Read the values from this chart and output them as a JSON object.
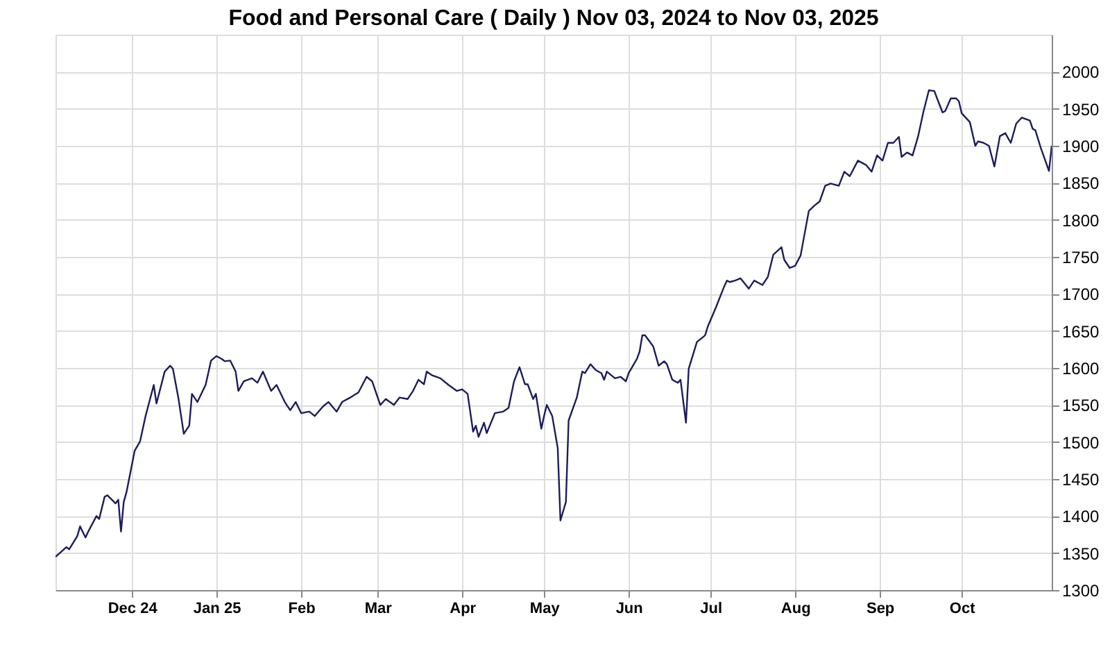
{
  "chart_data": {
    "type": "line",
    "title": "Food and Personal Care ( Daily ) Nov 03, 2024 to Nov 03, 2025",
    "x": [
      "2024-11-03",
      "2024-11-07",
      "2024-11-08",
      "2024-11-11",
      "2024-11-12",
      "2024-11-14",
      "2024-11-15",
      "2024-11-18",
      "2024-11-19",
      "2024-11-21",
      "2024-11-22",
      "2024-11-25",
      "2024-11-26",
      "2024-11-27",
      "2024-11-28",
      "2024-11-29",
      "2024-12-02",
      "2024-12-04",
      "2024-12-06",
      "2024-12-09",
      "2024-12-10",
      "2024-12-13",
      "2024-12-15",
      "2024-12-16",
      "2024-12-18",
      "2024-12-20",
      "2024-12-22",
      "2024-12-23",
      "2024-12-25",
      "2024-12-28",
      "2024-12-30",
      "2025-01-01",
      "2025-01-03",
      "2025-01-04",
      "2025-01-06",
      "2025-01-08",
      "2025-01-09",
      "2025-01-11",
      "2025-01-14",
      "2025-01-16",
      "2025-01-18",
      "2025-01-21",
      "2025-01-23",
      "2025-01-26",
      "2025-01-28",
      "2025-01-30",
      "2025-02-01",
      "2025-02-04",
      "2025-02-06",
      "2025-02-09",
      "2025-02-11",
      "2025-02-14",
      "2025-02-16",
      "2025-02-19",
      "2025-02-22",
      "2025-02-25",
      "2025-02-27",
      "2025-03-02",
      "2025-03-04",
      "2025-03-07",
      "2025-03-09",
      "2025-03-12",
      "2025-03-14",
      "2025-03-16",
      "2025-03-18",
      "2025-03-19",
      "2025-03-21",
      "2025-03-24",
      "2025-03-27",
      "2025-03-30",
      "2025-04-01",
      "2025-04-03",
      "2025-04-05",
      "2025-04-06",
      "2025-04-07",
      "2025-04-09",
      "2025-04-10",
      "2025-04-13",
      "2025-04-16",
      "2025-04-18",
      "2025-04-20",
      "2025-04-22",
      "2025-04-24",
      "2025-04-25",
      "2025-04-27",
      "2025-04-28",
      "2025-04-30",
      "2025-05-01",
      "2025-05-02",
      "2025-05-04",
      "2025-05-06",
      "2025-05-07",
      "2025-05-09",
      "2025-05-10",
      "2025-05-13",
      "2025-05-15",
      "2025-05-16",
      "2025-05-18",
      "2025-05-20",
      "2025-05-22",
      "2025-05-23",
      "2025-05-24",
      "2025-05-27",
      "2025-05-29",
      "2025-05-31",
      "2025-06-01",
      "2025-06-04",
      "2025-06-05",
      "2025-06-06",
      "2025-06-07",
      "2025-06-10",
      "2025-06-12",
      "2025-06-14",
      "2025-06-15",
      "2025-06-17",
      "2025-06-19",
      "2025-06-20",
      "2025-06-22",
      "2025-06-23",
      "2025-06-26",
      "2025-06-29",
      "2025-06-30",
      "2025-07-03",
      "2025-07-06",
      "2025-07-07",
      "2025-07-08",
      "2025-07-10",
      "2025-07-12",
      "2025-07-15",
      "2025-07-17",
      "2025-07-20",
      "2025-07-22",
      "2025-07-24",
      "2025-07-27",
      "2025-07-28",
      "2025-07-30",
      "2025-08-01",
      "2025-08-03",
      "2025-08-06",
      "2025-08-08",
      "2025-08-10",
      "2025-08-12",
      "2025-08-14",
      "2025-08-17",
      "2025-08-19",
      "2025-08-21",
      "2025-08-24",
      "2025-08-26",
      "2025-08-27",
      "2025-08-29",
      "2025-08-31",
      "2025-09-02",
      "2025-09-04",
      "2025-09-06",
      "2025-09-08",
      "2025-09-09",
      "2025-09-11",
      "2025-09-13",
      "2025-09-15",
      "2025-09-17",
      "2025-09-19",
      "2025-09-21",
      "2025-09-22",
      "2025-09-24",
      "2025-09-25",
      "2025-09-27",
      "2025-09-29",
      "2025-09-30",
      "2025-10-01",
      "2025-10-04",
      "2025-10-06",
      "2025-10-07",
      "2025-10-09",
      "2025-10-11",
      "2025-10-13",
      "2025-10-15",
      "2025-10-17",
      "2025-10-19",
      "2025-10-21",
      "2025-10-23",
      "2025-10-26",
      "2025-10-27",
      "2025-10-28",
      "2025-10-30",
      "2025-11-02",
      "2025-11-03"
    ],
    "series": [
      {
        "color": "#1c1c5c",
        "values": [
          1345,
          1358,
          1355,
          1373,
          1386,
          1371,
          1379,
          1400,
          1396,
          1426,
          1428,
          1417,
          1422,
          1379,
          1419,
          1432,
          1488,
          1501,
          1535,
          1577,
          1552,
          1595,
          1603,
          1599,
          1560,
          1511,
          1522,
          1565,
          1554,
          1577,
          1610,
          1616,
          1612,
          1609,
          1610,
          1595,
          1569,
          1582,
          1586,
          1580,
          1595,
          1569,
          1577,
          1554,
          1543,
          1554,
          1539,
          1541,
          1535,
          1548,
          1554,
          1541,
          1554,
          1560,
          1567,
          1588,
          1582,
          1550,
          1558,
          1550,
          1560,
          1558,
          1569,
          1584,
          1578,
          1595,
          1590,
          1586,
          1577,
          1569,
          1571,
          1565,
          1514,
          1522,
          1507,
          1526,
          1512,
          1539,
          1541,
          1546,
          1582,
          1601,
          1578,
          1578,
          1558,
          1565,
          1518,
          1535,
          1550,
          1535,
          1492,
          1394,
          1419,
          1529,
          1560,
          1595,
          1593,
          1605,
          1597,
          1593,
          1584,
          1595,
          1586,
          1588,
          1582,
          1593,
          1612,
          1622,
          1644,
          1644,
          1629,
          1603,
          1609,
          1605,
          1584,
          1580,
          1584,
          1526,
          1599,
          1635,
          1644,
          1656,
          1682,
          1710,
          1718,
          1716,
          1718,
          1721,
          1707,
          1718,
          1712,
          1723,
          1753,
          1763,
          1746,
          1735,
          1738,
          1752,
          1812,
          1819,
          1825,
          1846,
          1849,
          1846,
          1865,
          1859,
          1880,
          1876,
          1874,
          1865,
          1887,
          1880,
          1904,
          1904,
          1912,
          1885,
          1891,
          1887,
          1912,
          1946,
          1975,
          1974,
          1964,
          1945,
          1947,
          1964,
          1964,
          1960,
          1944,
          1932,
          1900,
          1906,
          1904,
          1900,
          1872,
          1913,
          1917,
          1904,
          1930,
          1938,
          1934,
          1923,
          1921,
          1897,
          1866,
          1900
        ]
      }
    ],
    "xlim": [
      "2024-11-03",
      "2025-11-03"
    ],
    "xticks": [
      {
        "value": "2024-12-01",
        "label": "Dec 24"
      },
      {
        "value": "2025-01-01",
        "label": "Jan 25"
      },
      {
        "value": "2025-02-01",
        "label": "Feb"
      },
      {
        "value": "2025-03-01",
        "label": "Mar"
      },
      {
        "value": "2025-04-01",
        "label": "Apr"
      },
      {
        "value": "2025-05-01",
        "label": "May"
      },
      {
        "value": "2025-06-01",
        "label": "Jun"
      },
      {
        "value": "2025-07-01",
        "label": "Jul"
      },
      {
        "value": "2025-08-01",
        "label": "Aug"
      },
      {
        "value": "2025-09-01",
        "label": "Sep"
      },
      {
        "value": "2025-10-01",
        "label": "Oct"
      }
    ],
    "ylim": [
      1300,
      2050
    ],
    "yticks": [
      1300,
      1350,
      1400,
      1450,
      1500,
      1550,
      1600,
      1650,
      1700,
      1750,
      1800,
      1850,
      1900,
      1950,
      2000
    ],
    "grid": true,
    "marker": "none",
    "line_style": "solid"
  }
}
